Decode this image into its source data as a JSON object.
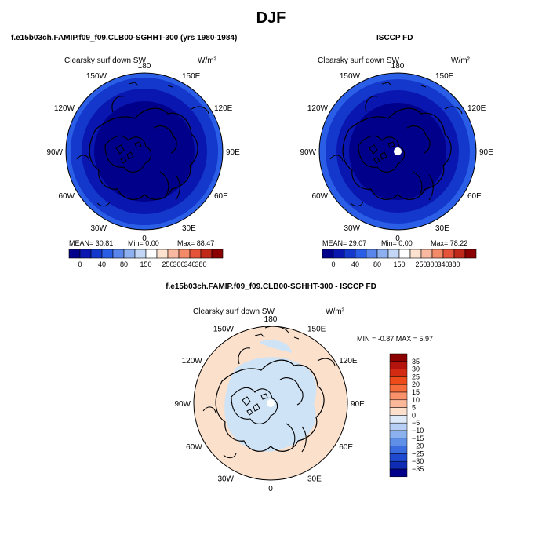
{
  "page": {
    "title": "DJF"
  },
  "colors": {
    "model_low": "#00008b",
    "ring": [
      "#00008b",
      "#0a16b0",
      "#1438cc",
      "#2a5ee6"
    ],
    "diff_pos": "#fbe0cc",
    "diff_neg": "#cfe3f6",
    "hbar": [
      "#00008b",
      "#0a16b0",
      "#1438cc",
      "#2a5ee6",
      "#5a86ec",
      "#8fb0f0",
      "#c3d6f6",
      "#ffffff",
      "#fde2cf",
      "#f9b9a0",
      "#f38a68",
      "#e5543a",
      "#c0281a",
      "#8b0000"
    ],
    "vbar": [
      "#8b0000",
      "#b3140d",
      "#d32a12",
      "#ee4a1a",
      "#f66c3a",
      "#f9916a",
      "#fbb79a",
      "#fde0cc",
      "#dfeaf8",
      "#b7cff4",
      "#8bb2ee",
      "#5f8fe6",
      "#3a6ce0",
      "#1f4ad0",
      "#0f2cb4",
      "#00008b"
    ]
  },
  "panels": [
    {
      "header": "f.e15b03ch.FAMIP.f09_f09.CLB00-SGHHT-300 (yrs 1980-1984)",
      "subtitle": "Clearsky surf down SW",
      "units": "W/m²",
      "stats": {
        "mean": "MEAN= 30.81",
        "min": "Min= 0.00",
        "max": "Max= 88.47"
      },
      "lon_labels": {
        "top": "180",
        "tr": "150E",
        "rt": "120E",
        "r": "90E",
        "rb": "60E",
        "br": "30E",
        "bottom": "0",
        "bl": "30W",
        "lb": "60W",
        "l": "90W",
        "lt": "120W",
        "tl": "150W"
      }
    },
    {
      "header": "ISCCP FD",
      "subtitle": "Clearsky surf down SW",
      "units": "W/m²",
      "stats": {
        "mean": "MEAN= 29.07",
        "min": "Min= 0.00",
        "max": "Max= 78.22"
      },
      "lon_labels": {
        "top": "180",
        "tr": "150E",
        "rt": "120E",
        "r": "90E",
        "rb": "60E",
        "br": "30E",
        "bottom": "0",
        "bl": "30W",
        "lb": "60W",
        "l": "90W",
        "lt": "120W",
        "tl": "150W"
      }
    },
    {
      "header": "f.e15b03ch.FAMIP.f09_f09.CLB00-SGHHT-300 - ISCCP FD",
      "subtitle": "Clearsky surf down SW",
      "units": "W/m²",
      "stats": {
        "minmax": "MIN = -0.87 MAX = 5.97"
      },
      "lon_labels": {
        "top": "180",
        "tr": "150E",
        "rt": "120E",
        "r": "90E",
        "rb": "60E",
        "br": "30E",
        "bottom": "0",
        "bl": "30W",
        "lb": "60W",
        "l": "90W",
        "lt": "120W",
        "tl": "150W"
      }
    }
  ],
  "chart_data": [
    {
      "type": "heatmap",
      "title": "f.e15b03ch.FAMIP.f09_f09.CLB00-SGHHT-300 (yrs 1980-1984)",
      "variable": "Clearsky surf down SW",
      "units": "W/m2",
      "projection": "north polar stereographic",
      "mean": 30.81,
      "min": 0.0,
      "max": 88.47,
      "colorbar_ticks": [
        "0",
        "40",
        "80",
        "150",
        "250",
        "300",
        "340",
        "380"
      ]
    },
    {
      "type": "heatmap",
      "title": "ISCCP FD",
      "variable": "Clearsky surf down SW",
      "units": "W/m2",
      "projection": "north polar stereographic",
      "mean": 29.07,
      "min": 0.0,
      "max": 78.22,
      "colorbar_ticks": [
        "0",
        "40",
        "80",
        "150",
        "250",
        "300",
        "340",
        "380"
      ]
    },
    {
      "type": "heatmap",
      "title": "f.e15b03ch.FAMIP.f09_f09.CLB00-SGHHT-300 - ISCCP FD",
      "variable": "Clearsky surf down SW",
      "units": "W/m2",
      "projection": "north polar stereographic",
      "min": -0.87,
      "max": 5.97,
      "colorbar_ticks": [
        "35",
        "30",
        "25",
        "20",
        "15",
        "10",
        "5",
        "0",
        "−5",
        "−10",
        "−15",
        "−20",
        "−25",
        "−30",
        "−35"
      ]
    }
  ]
}
